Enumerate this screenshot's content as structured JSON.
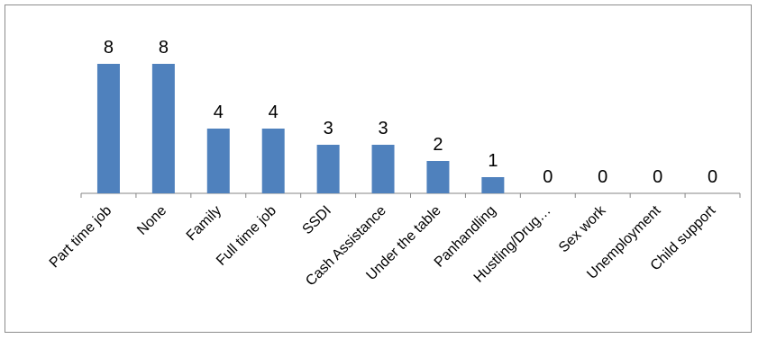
{
  "chart_data": {
    "type": "bar",
    "title": "",
    "xlabel": "",
    "ylabel": "",
    "categories": [
      "Part time job",
      "None",
      "Family",
      "Full time job",
      "SSDI",
      "Cash Assistance",
      "Under the table",
      "Panhandling",
      "Hustling/Drug…",
      "Sex work",
      "Unemployment",
      "Child support"
    ],
    "values": [
      8,
      8,
      4,
      4,
      3,
      3,
      2,
      1,
      0,
      0,
      0,
      0
    ],
    "ylim": [
      0,
      8
    ],
    "grid": false,
    "legend": "none",
    "bar_color": "#4f81bd"
  }
}
